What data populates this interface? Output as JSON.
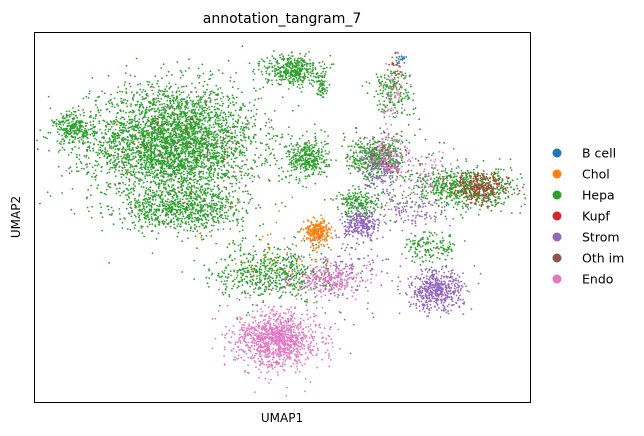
{
  "chart_data": {
    "type": "scatter",
    "title": "annotation_tangram_7",
    "xlabel": "UMAP1",
    "ylabel": "UMAP2",
    "grid": false,
    "ticks": false,
    "legend_placement": "right",
    "series": [
      {
        "name": "B cell",
        "color": "#1f77b4"
      },
      {
        "name": "Chol",
        "color": "#ff7f0e"
      },
      {
        "name": "Hepa",
        "color": "#2ca02c"
      },
      {
        "name": "Kupf",
        "color": "#d62728"
      },
      {
        "name": "Strom",
        "color": "#9467bd"
      },
      {
        "name": "Oth im",
        "color": "#8c564b"
      },
      {
        "name": "Endo",
        "color": "#e377c2"
      }
    ],
    "xlim": [
      0,
      100
    ],
    "ylim": [
      0,
      100
    ],
    "clusters": [
      {
        "label": "Hepa",
        "x": 28,
        "y": 70,
        "sx": 12,
        "sy": 11,
        "n": 3600
      },
      {
        "label": "Hepa",
        "x": 8,
        "y": 74,
        "sx": 3,
        "sy": 3,
        "n": 250
      },
      {
        "label": "Hepa",
        "x": 30,
        "y": 52,
        "sx": 9,
        "sy": 4,
        "n": 700
      },
      {
        "label": "Hepa",
        "x": 55,
        "y": 66,
        "sx": 3,
        "sy": 4,
        "n": 350
      },
      {
        "label": "Hepa",
        "x": 52,
        "y": 90,
        "sx": 4,
        "sy": 3,
        "n": 400
      },
      {
        "label": "Hepa",
        "x": 58,
        "y": 86,
        "sx": 0.8,
        "sy": 3,
        "n": 60
      },
      {
        "label": "Hepa",
        "x": 72,
        "y": 84,
        "sx": 3,
        "sy": 5,
        "n": 180
      },
      {
        "label": "Hepa",
        "x": 69,
        "y": 66,
        "sx": 4,
        "sy": 4,
        "n": 450
      },
      {
        "label": "Hepa",
        "x": 87,
        "y": 58,
        "sx": 8,
        "sy": 4,
        "n": 700
      },
      {
        "label": "Hepa",
        "x": 48,
        "y": 35,
        "sx": 8,
        "sy": 5,
        "n": 600
      },
      {
        "label": "Hepa",
        "x": 66,
        "y": 54,
        "sx": 4,
        "sy": 3,
        "n": 200
      },
      {
        "label": "Hepa",
        "x": 80,
        "y": 42,
        "sx": 4,
        "sy": 3,
        "n": 150
      },
      {
        "label": "Kupf",
        "x": 90,
        "y": 58,
        "sx": 4,
        "sy": 3,
        "n": 130
      },
      {
        "label": "Oth im",
        "x": 90,
        "y": 58,
        "sx": 4,
        "sy": 3,
        "n": 120
      },
      {
        "label": "Strom",
        "x": 81,
        "y": 30,
        "sx": 4,
        "sy": 4,
        "n": 500
      },
      {
        "label": "Strom",
        "x": 66,
        "y": 48,
        "sx": 2.5,
        "sy": 2.5,
        "n": 250
      },
      {
        "label": "Strom",
        "x": 70,
        "y": 64,
        "sx": 3,
        "sy": 4,
        "n": 150
      },
      {
        "label": "Strom",
        "x": 76,
        "y": 52,
        "sx": 5,
        "sy": 4,
        "n": 120
      },
      {
        "label": "Strom",
        "x": 63,
        "y": 36,
        "sx": 6,
        "sy": 6,
        "n": 120
      },
      {
        "label": "Chol",
        "x": 57,
        "y": 46,
        "sx": 1.8,
        "sy": 2.5,
        "n": 260
      },
      {
        "label": "Endo",
        "x": 49,
        "y": 17,
        "sx": 6,
        "sy": 5.5,
        "n": 1100
      },
      {
        "label": "Endo",
        "x": 59,
        "y": 33,
        "sx": 5,
        "sy": 3,
        "n": 250
      },
      {
        "label": "Endo",
        "x": 71,
        "y": 66,
        "sx": 3,
        "sy": 4,
        "n": 120
      },
      {
        "label": "Endo",
        "x": 80,
        "y": 62,
        "sx": 5,
        "sy": 5,
        "n": 60
      },
      {
        "label": "Endo",
        "x": 72,
        "y": 82,
        "sx": 2,
        "sy": 5,
        "n": 50
      },
      {
        "label": "Endo",
        "x": 33,
        "y": 70,
        "sx": 12,
        "sy": 10,
        "n": 40
      },
      {
        "label": "Kupf",
        "x": 30,
        "y": 68,
        "sx": 12,
        "sy": 10,
        "n": 40
      },
      {
        "label": "Oth im",
        "x": 72,
        "y": 68,
        "sx": 6,
        "sy": 6,
        "n": 60
      },
      {
        "label": "Oth im",
        "x": 73,
        "y": 90,
        "sx": 1,
        "sy": 3,
        "n": 30
      },
      {
        "label": "B cell",
        "x": 74,
        "y": 93,
        "sx": 1,
        "sy": 1,
        "n": 15
      },
      {
        "label": "Chol",
        "x": 50,
        "y": 40,
        "sx": 10,
        "sy": 8,
        "n": 40
      },
      {
        "label": "Strom",
        "x": 55,
        "y": 30,
        "sx": 12,
        "sy": 10,
        "n": 50
      }
    ]
  }
}
